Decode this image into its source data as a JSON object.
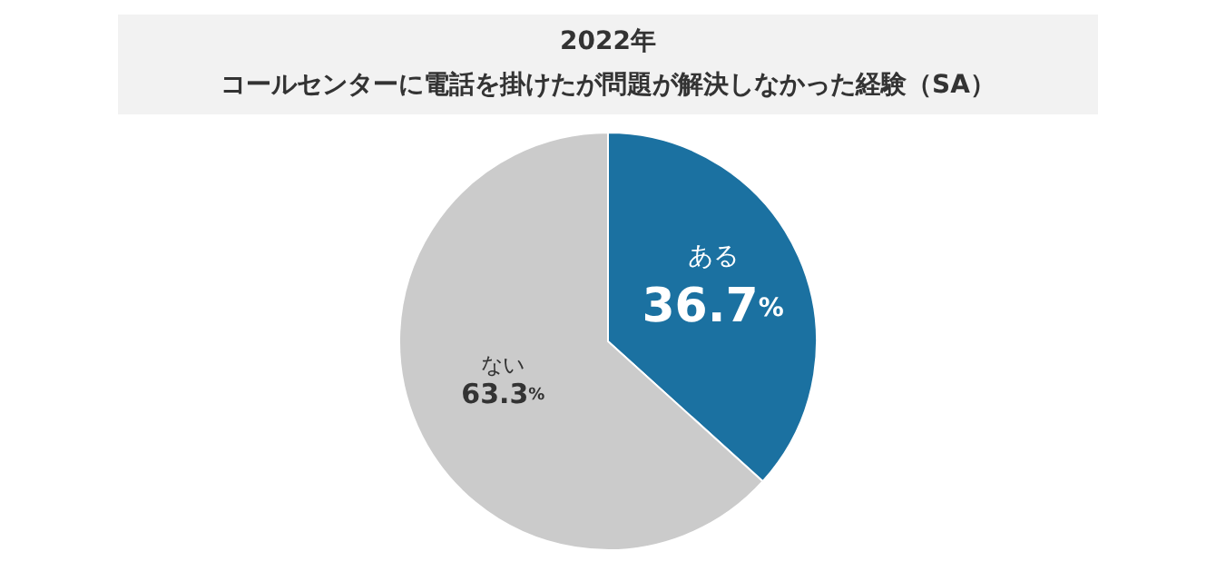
{
  "chart_data": {
    "type": "pie",
    "title": "2022年",
    "subtitle": "コールセンターに電話を掛けたが問題が解決しなかった経験（SA）",
    "categories": [
      "ある",
      "ない"
    ],
    "values": [
      36.7,
      63.3
    ],
    "colors": [
      "#1b71a1",
      "#cbcbcb"
    ],
    "value_labels": [
      "36.7%",
      "63.3%"
    ]
  }
}
